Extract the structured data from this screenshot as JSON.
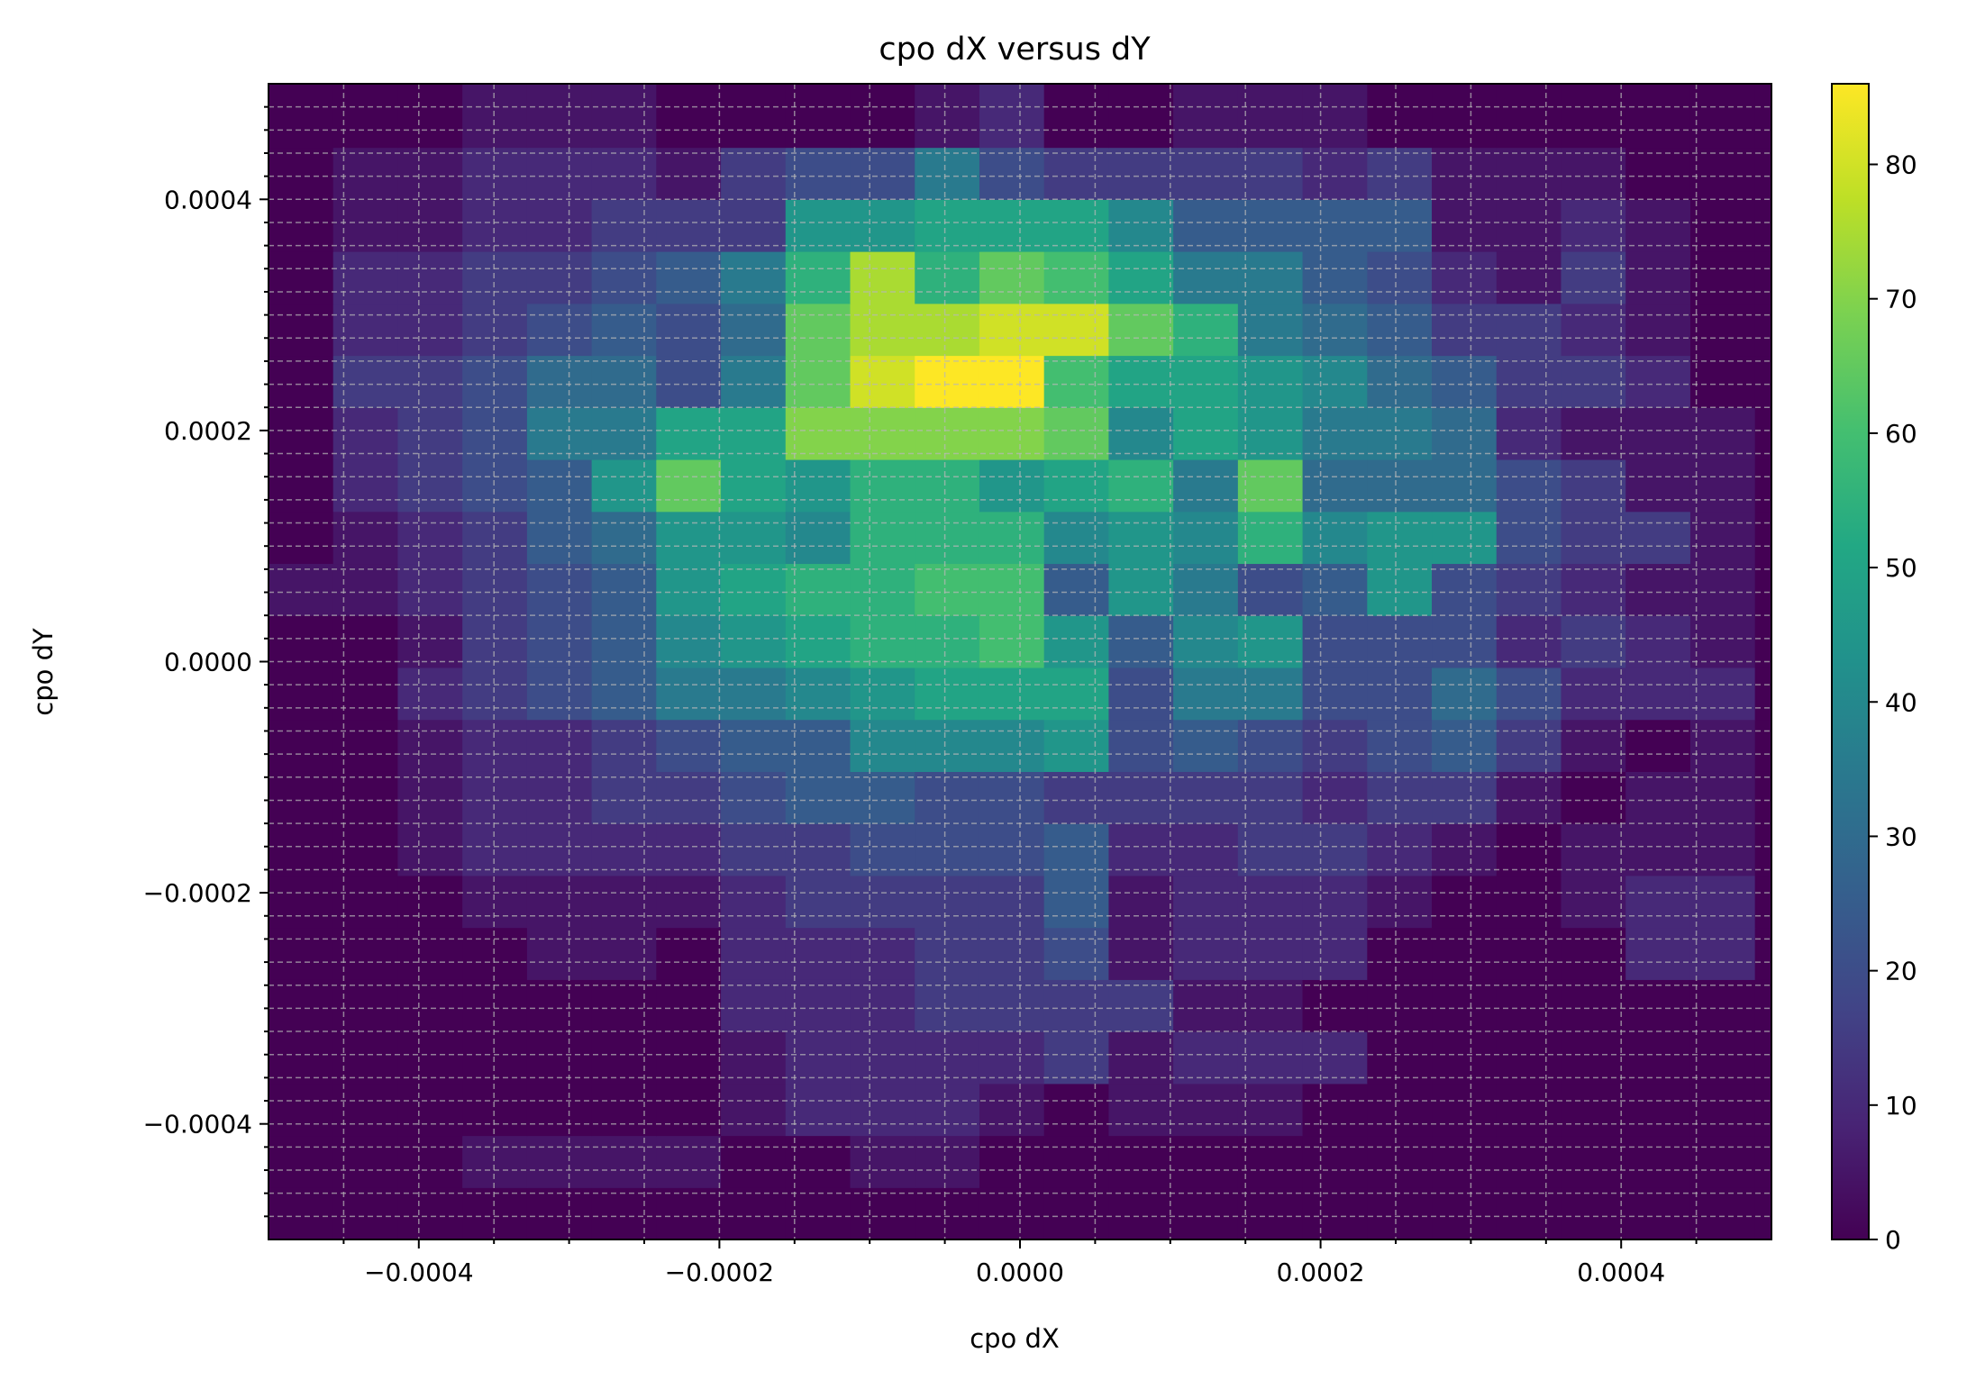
{
  "chart_data": {
    "type": "heatmap",
    "title": "cpo dX versus dY",
    "xlabel": "cpo dX",
    "ylabel": "cpo dY",
    "xlim": [
      -0.0005,
      0.0005
    ],
    "ylim": [
      -0.0005,
      0.0005
    ],
    "x_bin_edges": [
      -0.0005,
      -0.000457,
      -0.000414,
      -0.000371,
      -0.000328,
      -0.000285,
      -0.000242,
      -0.000199,
      -0.000156,
      -0.000113,
      -7e-05,
      -2.7e-05,
      1.6e-05,
      5.9e-05,
      0.000102,
      0.000145,
      0.000188,
      0.000231,
      0.000274,
      0.000317,
      0.00036,
      0.000403,
      0.000446,
      0.000489,
      0.0005
    ],
    "y_bin_edges": [
      -0.0005,
      -0.000455,
      -0.00041,
      -0.000365,
      -0.00032,
      -0.000275,
      -0.00023,
      -0.000185,
      -0.00014,
      -9.5e-05,
      -5e-05,
      -5e-06,
      4e-05,
      8.5e-05,
      0.00013,
      0.000175,
      0.00022,
      0.000265,
      0.00031,
      0.000355,
      0.0004,
      0.000445,
      0.0005
    ],
    "x_ticks": [
      {
        "value": -0.0004,
        "label": "−0.0004"
      },
      {
        "value": -0.0002,
        "label": "−0.0002"
      },
      {
        "value": 0.0,
        "label": "0.0000"
      },
      {
        "value": 0.0002,
        "label": "0.0002"
      },
      {
        "value": 0.0004,
        "label": "0.0004"
      }
    ],
    "y_ticks": [
      {
        "value": -0.0004,
        "label": "−0.0004"
      },
      {
        "value": -0.0002,
        "label": "−0.0002"
      },
      {
        "value": 0.0,
        "label": "0.0000"
      },
      {
        "value": 0.0002,
        "label": "0.0002"
      },
      {
        "value": 0.0004,
        "label": "0.0004"
      }
    ],
    "colorbar": {
      "colormap": "viridis",
      "range": [
        0,
        86
      ],
      "ticks": [
        {
          "value": 0,
          "label": "0"
        },
        {
          "value": 10,
          "label": "10"
        },
        {
          "value": 20,
          "label": "20"
        },
        {
          "value": 30,
          "label": "30"
        },
        {
          "value": 40,
          "label": "40"
        },
        {
          "value": 50,
          "label": "50"
        },
        {
          "value": 60,
          "label": "60"
        },
        {
          "value": 70,
          "label": "70"
        },
        {
          "value": 80,
          "label": "80"
        }
      ]
    },
    "grid": true,
    "counts": [
      [
        0,
        0,
        0,
        0,
        0,
        0,
        0,
        0,
        0,
        0,
        0,
        0,
        0,
        0,
        0,
        0,
        0,
        0,
        0,
        0,
        0,
        0,
        0,
        0
      ],
      [
        0,
        0,
        0,
        5,
        5,
        5,
        5,
        0,
        0,
        5,
        5,
        0,
        0,
        0,
        0,
        0,
        0,
        0,
        0,
        0,
        0,
        0,
        0,
        0
      ],
      [
        0,
        0,
        0,
        0,
        0,
        0,
        0,
        5,
        10,
        10,
        10,
        5,
        0,
        5,
        5,
        5,
        0,
        0,
        0,
        0,
        0,
        0,
        0,
        0
      ],
      [
        0,
        0,
        0,
        0,
        0,
        0,
        0,
        5,
        10,
        10,
        10,
        10,
        15,
        5,
        10,
        10,
        10,
        0,
        0,
        0,
        0,
        0,
        0,
        0
      ],
      [
        0,
        0,
        0,
        0,
        0,
        0,
        0,
        10,
        10,
        10,
        15,
        15,
        15,
        15,
        5,
        5,
        0,
        0,
        0,
        0,
        0,
        0,
        0,
        0
      ],
      [
        0,
        0,
        0,
        0,
        5,
        5,
        0,
        10,
        10,
        10,
        15,
        15,
        20,
        5,
        10,
        10,
        10,
        0,
        0,
        0,
        0,
        10,
        10,
        0
      ],
      [
        0,
        0,
        0,
        5,
        5,
        5,
        5,
        10,
        15,
        15,
        15,
        15,
        25,
        5,
        10,
        10,
        10,
        5,
        0,
        0,
        5,
        10,
        10,
        0
      ],
      [
        0,
        0,
        5,
        10,
        10,
        10,
        10,
        15,
        15,
        20,
        20,
        20,
        25,
        10,
        10,
        15,
        15,
        10,
        5,
        0,
        5,
        5,
        5,
        0
      ],
      [
        0,
        0,
        5,
        10,
        10,
        15,
        15,
        20,
        25,
        25,
        20,
        20,
        15,
        15,
        15,
        15,
        10,
        15,
        15,
        5,
        0,
        5,
        5,
        0
      ],
      [
        0,
        0,
        5,
        10,
        10,
        15,
        20,
        25,
        25,
        40,
        40,
        40,
        45,
        20,
        25,
        20,
        15,
        20,
        25,
        15,
        5,
        0,
        5,
        0
      ],
      [
        0,
        0,
        10,
        15,
        20,
        25,
        35,
        35,
        40,
        45,
        50,
        50,
        50,
        20,
        35,
        35,
        20,
        20,
        30,
        20,
        10,
        10,
        10,
        0
      ],
      [
        0,
        0,
        5,
        15,
        20,
        25,
        40,
        45,
        50,
        55,
        55,
        60,
        45,
        25,
        40,
        45,
        20,
        20,
        20,
        10,
        15,
        10,
        5,
        0
      ],
      [
        5,
        5,
        10,
        15,
        20,
        25,
        45,
        50,
        55,
        55,
        60,
        60,
        25,
        45,
        35,
        20,
        25,
        45,
        20,
        15,
        10,
        5,
        5,
        0
      ],
      [
        0,
        5,
        10,
        15,
        25,
        30,
        45,
        45,
        40,
        55,
        55,
        55,
        40,
        45,
        40,
        55,
        40,
        45,
        45,
        20,
        15,
        15,
        5,
        0
      ],
      [
        0,
        10,
        15,
        20,
        25,
        45,
        65,
        50,
        45,
        55,
        55,
        45,
        50,
        55,
        35,
        65,
        30,
        30,
        30,
        20,
        15,
        5,
        5,
        0
      ],
      [
        0,
        10,
        15,
        20,
        35,
        35,
        50,
        50,
        70,
        70,
        70,
        70,
        65,
        40,
        50,
        45,
        35,
        35,
        30,
        10,
        5,
        5,
        5,
        0
      ],
      [
        0,
        15,
        15,
        20,
        30,
        30,
        20,
        35,
        65,
        80,
        86,
        86,
        60,
        50,
        50,
        45,
        40,
        30,
        25,
        15,
        15,
        10,
        0,
        0
      ],
      [
        0,
        10,
        10,
        15,
        20,
        25,
        20,
        30,
        65,
        75,
        75,
        80,
        80,
        65,
        55,
        35,
        30,
        25,
        15,
        15,
        10,
        5,
        0,
        0
      ],
      [
        0,
        10,
        10,
        15,
        15,
        20,
        25,
        35,
        55,
        75,
        55,
        65,
        60,
        50,
        35,
        35,
        25,
        20,
        10,
        5,
        15,
        5,
        0,
        0
      ],
      [
        0,
        5,
        5,
        10,
        10,
        15,
        15,
        15,
        45,
        45,
        50,
        50,
        50,
        40,
        25,
        25,
        25,
        25,
        5,
        5,
        10,
        5,
        0,
        0
      ],
      [
        0,
        5,
        5,
        10,
        10,
        10,
        5,
        15,
        20,
        20,
        35,
        20,
        15,
        15,
        15,
        15,
        10,
        15,
        5,
        5,
        5,
        0,
        0,
        0
      ],
      [
        0,
        0,
        0,
        5,
        5,
        5,
        0,
        0,
        0,
        0,
        5,
        10,
        0,
        0,
        5,
        5,
        5,
        0,
        0,
        0,
        0,
        0,
        0,
        0
      ]
    ]
  }
}
